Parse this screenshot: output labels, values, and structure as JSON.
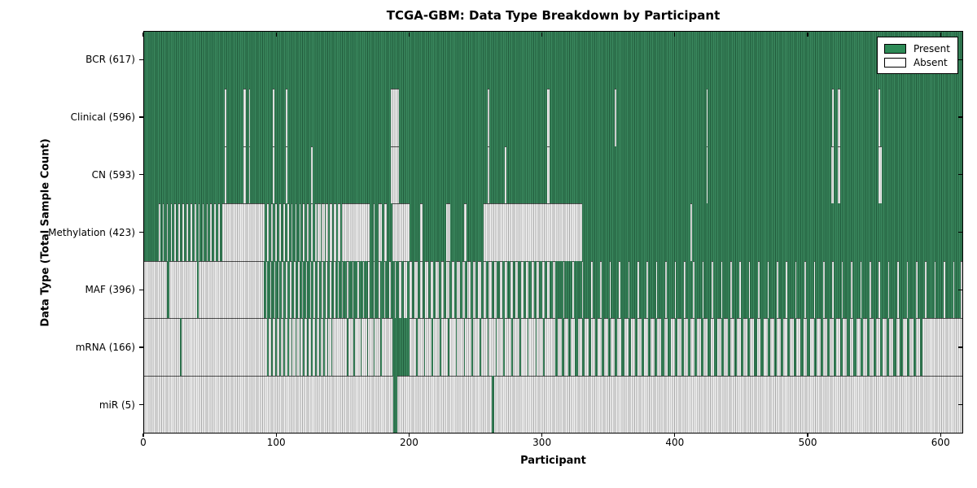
{
  "title": "TCGA-GBM: Data Type Breakdown by Participant",
  "x_axis_label": "Participant",
  "y_axis_label": "Data Type (Total Sample Count)",
  "legend": {
    "position": "upper-right",
    "items": [
      {
        "label": "Present",
        "state": "present"
      },
      {
        "label": "Absent",
        "state": "absent"
      }
    ]
  },
  "colors": {
    "present": "#2E8154",
    "legend_present": "#2E8B57",
    "absent": "#f0f0f0",
    "axis": "#000000"
  },
  "chart_data": {
    "type": "heatmap",
    "subtype": "presence-absence-matrix",
    "title": "TCGA-GBM: Data Type Breakdown by Participant",
    "xlabel": "Participant",
    "ylabel": "Data Type (Total Sample Count)",
    "x_range": [
      0,
      617
    ],
    "x_ticks": [
      0,
      100,
      200,
      300,
      400,
      500,
      600
    ],
    "participants_total": 617,
    "grid": false,
    "legend_position": "upper-right",
    "value_encoding": {
      "1": "Present",
      "0": "Absent"
    },
    "rows": [
      {
        "label": "BCR (617)",
        "data_type": "BCR",
        "present_total": 617,
        "segments": [
          {
            "repeat": 1,
            "runs": [
              [
                617,
                1
              ]
            ]
          }
        ]
      },
      {
        "label": "Clinical (596)",
        "data_type": "Clinical",
        "present_total": 596,
        "segments": [
          {
            "repeat": 1,
            "runs": [
              [
                61,
                1
              ],
              [
                1,
                0
              ],
              [
                13,
                1
              ],
              [
                2,
                0
              ],
              [
                2,
                1
              ],
              [
                1,
                0
              ],
              [
                17,
                1
              ],
              [
                1,
                0
              ],
              [
                9,
                1
              ],
              [
                1,
                0
              ],
              [
                78,
                1
              ],
              [
                6,
                0
              ],
              [
                67,
                1
              ],
              [
                1,
                0
              ],
              [
                44,
                1
              ],
              [
                2,
                0
              ],
              [
                49,
                1
              ],
              [
                1,
                0
              ],
              [
                68,
                1
              ],
              [
                1,
                0
              ],
              [
                94,
                1
              ],
              [
                1,
                0
              ],
              [
                3,
                1
              ],
              [
                2,
                0
              ],
              [
                29,
                1
              ],
              [
                1,
                0
              ],
              [
                62,
                1
              ]
            ]
          }
        ]
      },
      {
        "label": "CN (593)",
        "data_type": "CN",
        "present_total": 593,
        "segments": [
          {
            "repeat": 1,
            "runs": [
              [
                61,
                1
              ],
              [
                1,
                0
              ],
              [
                13,
                1
              ],
              [
                2,
                0
              ],
              [
                2,
                1
              ],
              [
                1,
                0
              ],
              [
                17,
                1
              ],
              [
                1,
                0
              ],
              [
                9,
                1
              ],
              [
                1,
                0
              ],
              [
                18,
                1
              ],
              [
                1,
                0
              ],
              [
                59,
                1
              ],
              [
                6,
                0
              ],
              [
                67,
                1
              ],
              [
                1,
                0
              ],
              [
                12,
                1
              ],
              [
                1,
                0
              ],
              [
                31,
                1
              ],
              [
                2,
                0
              ],
              [
                118,
                1
              ],
              [
                1,
                0
              ],
              [
                93,
                1
              ],
              [
                2,
                0
              ],
              [
                3,
                1
              ],
              [
                2,
                0
              ],
              [
                29,
                1
              ],
              [
                2,
                0
              ],
              [
                61,
                1
              ]
            ]
          }
        ]
      },
      {
        "label": "Methylation (423)",
        "data_type": "Methylation",
        "present_total": 423,
        "segments": [
          {
            "repeat": 1,
            "runs": [
              [
                9,
                1
              ]
            ]
          },
          {
            "repeat": 17,
            "runs": [
              [
                2,
                1
              ],
              [
                1,
                0
              ]
            ]
          },
          {
            "repeat": 1,
            "runs": [
              [
                31,
                0
              ]
            ]
          },
          {
            "repeat": 13,
            "runs": [
              [
                2,
                1
              ],
              [
                1,
                0
              ]
            ]
          },
          {
            "repeat": 7,
            "runs": [
              [
                1,
                1
              ],
              [
                2,
                0
              ]
            ]
          },
          {
            "repeat": 1,
            "runs": [
              [
                19,
                0
              ],
              [
                3,
                1
              ],
              [
                1,
                0
              ],
              [
                3,
                1
              ],
              [
                2,
                0
              ],
              [
                2,
                1
              ],
              [
                2,
                0
              ],
              [
                4,
                1
              ],
              [
                13,
                0
              ],
              [
                8,
                1
              ],
              [
                2,
                0
              ],
              [
                18,
                1
              ],
              [
                3,
                0
              ],
              [
                10,
                1
              ],
              [
                2,
                0
              ],
              [
                13,
                1
              ],
              [
                74,
                0
              ],
              [
                82,
                1
              ],
              [
                1,
                0
              ],
              [
                204,
                1
              ]
            ]
          }
        ]
      },
      {
        "label": "MAF (396)",
        "data_type": "MAF",
        "present_total": 396,
        "segments": [
          {
            "repeat": 1,
            "runs": [
              [
                17,
                0
              ],
              [
                2,
                1
              ],
              [
                21,
                0
              ],
              [
                1,
                1
              ],
              [
                49,
                0
              ]
            ]
          },
          {
            "repeat": 20,
            "runs": [
              [
                2,
                1
              ],
              [
                1,
                0
              ]
            ]
          },
          {
            "repeat": 10,
            "runs": [
              [
                3,
                1
              ],
              [
                1,
                0
              ]
            ]
          },
          {
            "repeat": 30,
            "runs": [
              [
                2,
                1
              ],
              [
                2,
                0
              ]
            ]
          },
          {
            "repeat": 43,
            "runs": [
              [
                6,
                1
              ],
              [
                1,
                0
              ]
            ]
          },
          {
            "repeat": 1,
            "runs": [
              [
                5,
                1
              ],
              [
                1,
                0
              ]
            ]
          }
        ]
      },
      {
        "label": "mRNA (166)",
        "data_type": "mRNA",
        "present_total": 166,
        "segments": [
          {
            "repeat": 1,
            "runs": [
              [
                27,
                0
              ],
              [
                1,
                1
              ],
              [
                65,
                0
              ]
            ]
          },
          {
            "repeat": 17,
            "runs": [
              [
                1,
                1
              ],
              [
                2,
                0
              ]
            ]
          },
          {
            "repeat": 1,
            "runs": [
              [
                9,
                0
              ]
            ]
          },
          {
            "repeat": 6,
            "runs": [
              [
                1,
                1
              ],
              [
                4,
                0
              ]
            ]
          },
          {
            "repeat": 1,
            "runs": [
              [
                4,
                0
              ],
              [
                12,
                1
              ]
            ]
          },
          {
            "repeat": 18,
            "runs": [
              [
                1,
                1
              ],
              [
                5,
                0
              ]
            ]
          },
          {
            "repeat": 1,
            "runs": [
              [
                3,
                0
              ]
            ]
          },
          {
            "repeat": 56,
            "runs": [
              [
                2,
                1
              ],
              [
                3,
                0
              ]
            ]
          },
          {
            "repeat": 1,
            "runs": [
              [
                27,
                0
              ]
            ]
          }
        ]
      },
      {
        "label": "miR (5)",
        "data_type": "miR",
        "present_total": 5,
        "segments": [
          {
            "repeat": 1,
            "runs": [
              [
                188,
                0
              ],
              [
                3,
                1
              ],
              [
                71,
                0
              ],
              [
                2,
                1
              ],
              [
                353,
                0
              ]
            ]
          }
        ]
      }
    ]
  }
}
